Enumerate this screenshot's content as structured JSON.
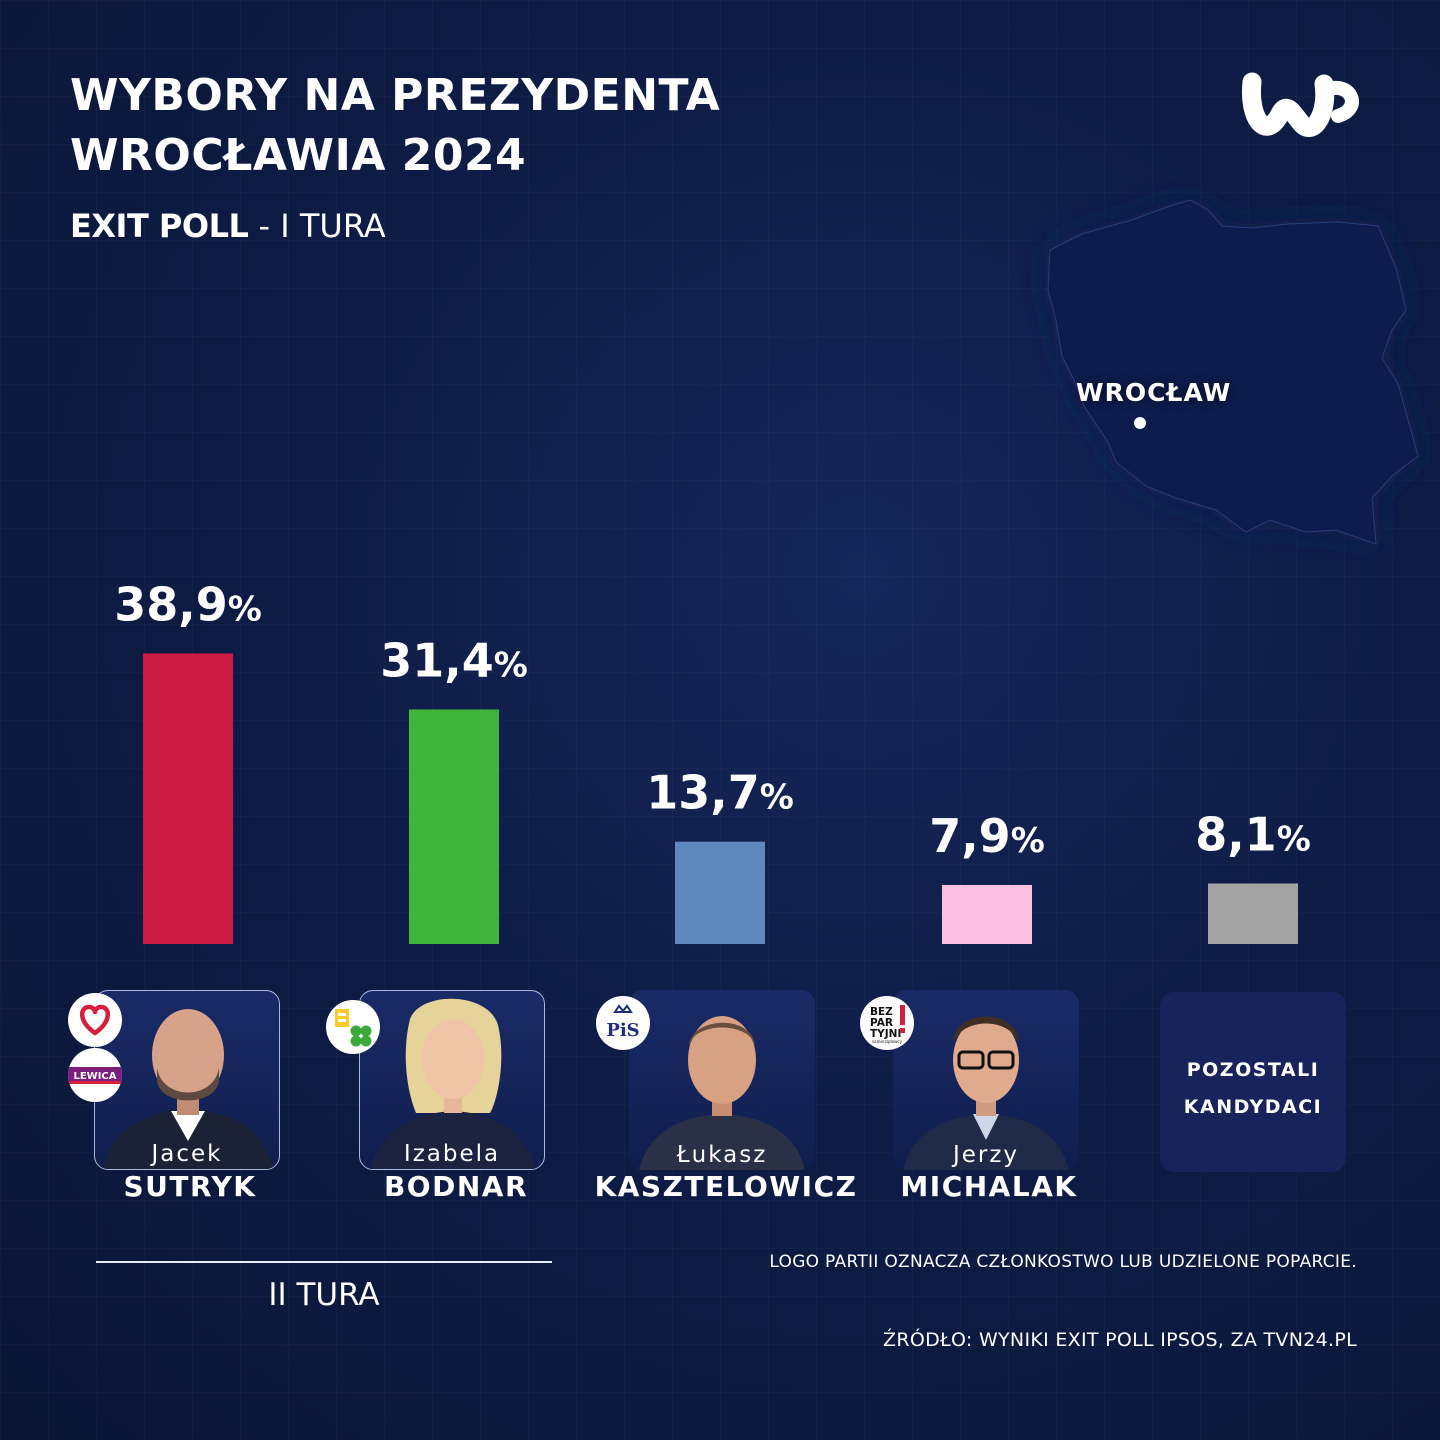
{
  "header": {
    "title_line1": "WYBORY NA PREZYDENTA",
    "title_line2": "WROCŁAWIA  2024",
    "subtitle_bold": "EXIT POLL",
    "subtitle_rest": " - I TURA"
  },
  "map": {
    "city_label": "WROCŁAW"
  },
  "candidates": [
    {
      "first_name": "Jacek",
      "last_name": "SUTRYK",
      "badge_texts": [
        "LEWICA"
      ]
    },
    {
      "first_name": "Izabela",
      "last_name": "BODNAR",
      "badge_texts": []
    },
    {
      "first_name": "Łukasz",
      "last_name": "KASZTELOWICZ",
      "badge_texts": [
        "PiS"
      ]
    },
    {
      "first_name": "Jerzy",
      "last_name": "MICHALAK",
      "badge_texts": [
        "BEZ",
        "PAR",
        "TYJNI",
        "samorządowcy"
      ]
    },
    {
      "first_name": "",
      "last_name": "",
      "card_label_line1": "POZOSTALI",
      "card_label_line2": "KANDYDACI"
    }
  ],
  "chart_data": {
    "type": "bar",
    "categories": [
      "Jacek SUTRYK",
      "Izabela BODNAR",
      "Łukasz KASZTELOWICZ",
      "Jerzy MICHALAK",
      "POZOSTALI KANDYDACI"
    ],
    "values": [
      38.9,
      31.4,
      13.7,
      7.9,
      8.1
    ],
    "value_labels": [
      "38,9",
      "31,4",
      "13,7",
      "7,9",
      "8,1"
    ],
    "value_suffix": "%",
    "colors": [
      "#cb1a44",
      "#3fb43c",
      "#5e89be",
      "#fdbfe0",
      "#a3a3a3"
    ],
    "title": "WYBORY NA PREZYDENTA WROCŁAWIA  2024",
    "xlabel": "",
    "ylabel": "",
    "grid": false
  },
  "footer": {
    "round_label": "II TURA",
    "note": "LOGO PARTII OZNACZA CZŁONKOSTWO LUB UDZIELONE POPARCIE.",
    "source": "ŹRÓDŁO: WYNIKI EXIT POLL IPSOS, ZA TVN24.PL"
  },
  "icons": {
    "logo": "wp-logo-icon",
    "badges": [
      "heart-badge-icon",
      "lewica-badge-icon",
      "clover-badge-icon",
      "pis-badge-icon",
      "bezpartyjni-badge-icon"
    ]
  }
}
